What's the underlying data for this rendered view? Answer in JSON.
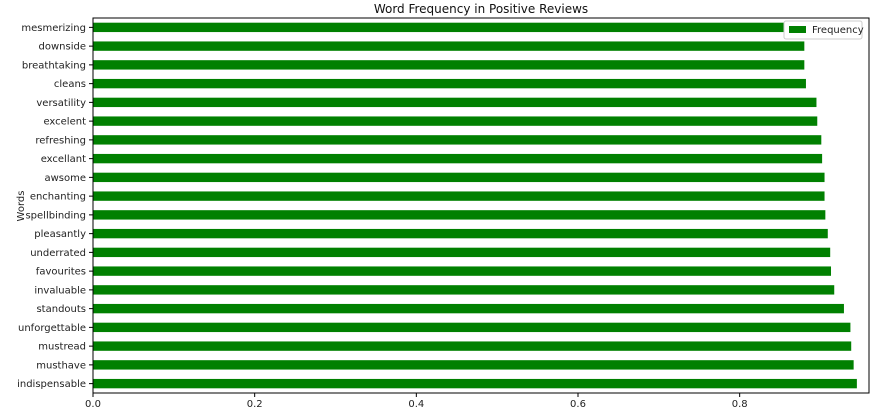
{
  "chart_data": {
    "type": "bar",
    "orientation": "horizontal",
    "title": "Word Frequency in Positive Reviews",
    "xlabel": "",
    "ylabel": "Words",
    "xlim": [
      0.0,
      0.96
    ],
    "xticks": [
      "0.0",
      "0.2",
      "0.4",
      "0.6",
      "0.8"
    ],
    "xtick_values": [
      0.0,
      0.2,
      0.4,
      0.6,
      0.8
    ],
    "categories": [
      "indispensable",
      "musthave",
      "mustread",
      "unforgettable",
      "standouts",
      "invaluable",
      "favourites",
      "underrated",
      "pleasantly",
      "spellbinding",
      "enchanting",
      "awsome",
      "excellant",
      "refreshing",
      "excelent",
      "versatility",
      "cleans",
      "breathtaking",
      "downside",
      "mesmerizing"
    ],
    "series": [
      {
        "name": "Frequency",
        "color": "#008000",
        "values": [
          0.945,
          0.941,
          0.938,
          0.937,
          0.929,
          0.917,
          0.913,
          0.912,
          0.909,
          0.906,
          0.905,
          0.905,
          0.902,
          0.901,
          0.896,
          0.895,
          0.882,
          0.88,
          0.88,
          0.879
        ]
      }
    ],
    "legend": {
      "position": "top-right",
      "label": "Frequency"
    }
  }
}
